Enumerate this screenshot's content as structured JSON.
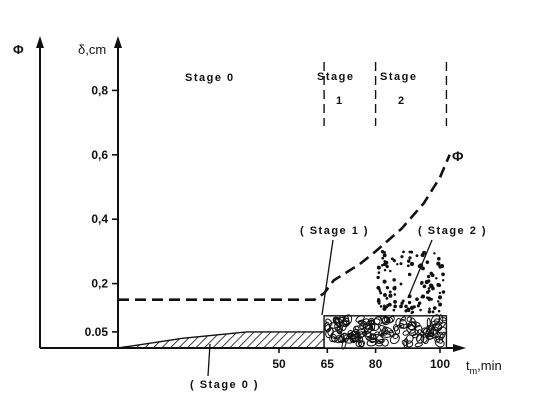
{
  "chart_data": {
    "type": "line",
    "title": "",
    "axes": {
      "y_phi_label": "Φ",
      "y_delta_label": "δ,cm",
      "x_label_main": "t",
      "x_label_sub": "m",
      "x_label_unit": ",min"
    },
    "x_range": [
      0,
      102
    ],
    "y_range": [
      0,
      0.85
    ],
    "x_ticks": [
      {
        "value": 50,
        "label": "50"
      },
      {
        "value": 65,
        "label": "65"
      },
      {
        "value": 80,
        "label": "80"
      },
      {
        "value": 100,
        "label": "100"
      }
    ],
    "y_ticks": [
      {
        "value": 0.05,
        "label": "0.05"
      },
      {
        "value": 0.2,
        "label": "0,2"
      },
      {
        "value": 0.4,
        "label": "0,4"
      },
      {
        "value": 0.6,
        "label": "0,6"
      },
      {
        "value": 0.8,
        "label": "0,8"
      }
    ],
    "series": [
      {
        "name": "Φ",
        "style": "dashed",
        "points": [
          [
            0,
            0.15
          ],
          [
            61,
            0.15
          ],
          [
            64,
            0.17
          ],
          [
            67,
            0.21
          ],
          [
            75,
            0.26
          ],
          [
            80,
            0.3
          ],
          [
            88,
            0.37
          ],
          [
            95,
            0.45
          ],
          [
            100,
            0.53
          ],
          [
            103,
            0.6
          ]
        ]
      }
    ],
    "stage_boundaries": [
      64,
      80,
      102
    ],
    "regions": {
      "stage0": {
        "x_start": 0,
        "x_end": 64,
        "thickness_points": [
          [
            0,
            0
          ],
          [
            20,
            0.03
          ],
          [
            40,
            0.05
          ],
          [
            64,
            0.05
          ]
        ]
      },
      "stage1": {
        "x_start": 64,
        "x_end": 80,
        "thickness": 0.1
      },
      "stage2": {
        "x_start": 80,
        "x_end": 102,
        "thickness": 0.1,
        "particles_to": 0.3
      }
    },
    "annotations": {
      "stage0_header": "Stage 0",
      "stage1_header_a": "Stage",
      "stage1_header_b": "1",
      "stage2_header_a": "Stage",
      "stage2_header_b": "2",
      "stage1_callout": "( Stage 1 )",
      "stage2_callout": "( Stage 2 )",
      "stage0_callout": "( Stage 0 )",
      "phi_curve_label": "Φ"
    },
    "colors": {
      "ink": "#111111",
      "background": "#ffffff"
    }
  }
}
